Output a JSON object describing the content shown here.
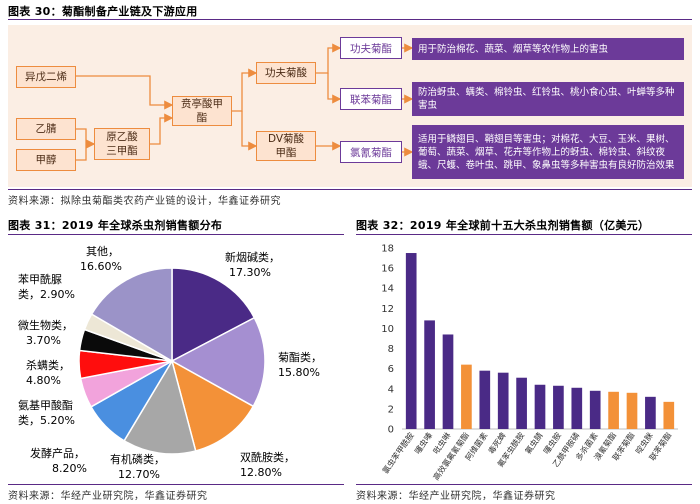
{
  "fig30": {
    "title": "图表 30：菊酯制备产业链及下游应用",
    "source": "资料来源：拟除虫菊酯类农药产业链的设计，华鑫证券研究",
    "nodes": {
      "isopentene": "异戊二烯",
      "acetonitrile": "乙腈",
      "methanol": "甲醇",
      "orthoacetate": "原乙酸三甲酯",
      "chrysanthemate": "贲亭酸甲酯",
      "kungfu_acid": "功夫菊酸",
      "dv_acid": "DV菊酸甲酯",
      "kungfu": "功夫菊酯",
      "bifenthrin": "联苯菊酯",
      "cypermethrin": "氯氰菊酯"
    },
    "descriptions": {
      "kungfu": "用于防治棉花、蔬菜、烟草等农作物上的害虫",
      "bifenthrin": "防治蚜虫、螨类、棉铃虫、红铃虫、桃小食心虫、叶蝉等多种害虫",
      "cypermethrin": "适用于鳞翅目、鞘翅目等害虫；对棉花、大豆、玉米、果树、葡萄、蔬菜、烟草、花卉等作物上的蚜虫、棉铃虫、斜纹夜蛾、尺蠖、卷叶虫、跳甲、象鼻虫等多种害虫有良好防治效果"
    }
  },
  "fig31": {
    "title": "图表 31：2019 年全球杀虫剂销售额分布",
    "source": "资料来源：华经产业研究院，华鑫证券研究",
    "chart_data": {
      "type": "pie",
      "slices": [
        {
          "name": "新烟碱类",
          "value": 17.3,
          "label": "17.30%",
          "color": "#4a2a86"
        },
        {
          "name": "菊酯类",
          "value": 15.8,
          "label": "15.80%",
          "color": "#a58fd1"
        },
        {
          "name": "双酰胺类",
          "value": 12.8,
          "label": "12.80%",
          "color": "#f39138"
        },
        {
          "name": "有机磷类",
          "value": 12.7,
          "label": "12.70%",
          "color": "#a7a7a7"
        },
        {
          "name": "发酵产品",
          "value": 8.2,
          "label": "8.20%",
          "color": "#4a8fe0"
        },
        {
          "name": "氨基甲酸酯类",
          "value": 5.2,
          "label": "5.20%",
          "color": "#f2a3dc"
        },
        {
          "name": "杀螨类",
          "value": 4.8,
          "label": "4.80%",
          "color": "#ff0d0d"
        },
        {
          "name": "微生物类",
          "value": 3.7,
          "label": "3.70%",
          "color": "#0a0a0a"
        },
        {
          "name": "苯甲酰脲类",
          "value": 2.9,
          "label": "2.90%",
          "color": "#ede7d6"
        },
        {
          "name": "其他",
          "value": 16.6,
          "label": "16.60%",
          "color": "#9b93c8"
        }
      ]
    },
    "labels": [
      {
        "name": "新烟碱类，",
        "pct": "17.30%"
      },
      {
        "name": "菊酯类，",
        "pct": "15.80%"
      },
      {
        "name": "双酰胺类，",
        "pct": "12.80%"
      },
      {
        "name": "有机磷类，",
        "pct": "12.70%"
      },
      {
        "name": "发酵产品，",
        "pct": "8.20%"
      },
      {
        "name": "氨基甲酸酯",
        "pct": "类，5.20%"
      },
      {
        "name": "杀螨类，",
        "pct": "4.80%"
      },
      {
        "name": "微生物类，",
        "pct": "3.70%"
      },
      {
        "name": "苯甲酰脲",
        "pct": "类，2.90%"
      },
      {
        "name": "其他，",
        "pct": "16.60%"
      }
    ]
  },
  "fig32": {
    "title": "图表 32：2019 年全球前十五大杀虫剂销售额（亿美元）",
    "source": "资料来源：华经产业研究院，华鑫证券研究",
    "chart_data": {
      "type": "bar",
      "categories": [
        "氯虫苯甲酰胺",
        "噻虫嗪",
        "吡虫啉",
        "高效氯氟氰菊酯",
        "阿维菌素",
        "毒死蜱",
        "氟苯虫酰胺",
        "氟虫腈",
        "噻虫胺",
        "乙酰甲胺磷",
        "多杀菌素",
        "溴氰菊酯",
        "联苯菊酯",
        "啶虫脒",
        "联苯菊酯"
      ],
      "values": [
        17.5,
        10.8,
        9.4,
        6.4,
        5.8,
        5.6,
        5.1,
        4.4,
        4.3,
        4.1,
        3.8,
        3.7,
        3.6,
        3.2,
        2.7
      ],
      "colors": [
        "#4a2a86",
        "#4a2a86",
        "#4a2a86",
        "#f39138",
        "#4a2a86",
        "#4a2a86",
        "#4a2a86",
        "#4a2a86",
        "#4a2a86",
        "#4a2a86",
        "#4a2a86",
        "#f39138",
        "#f39138",
        "#4a2a86",
        "#f39138"
      ],
      "ylim": [
        0,
        18
      ],
      "yticks": [
        "0",
        "2",
        "4",
        "6",
        "8",
        "10",
        "12",
        "14",
        "16",
        "18"
      ],
      "grid": false
    }
  }
}
